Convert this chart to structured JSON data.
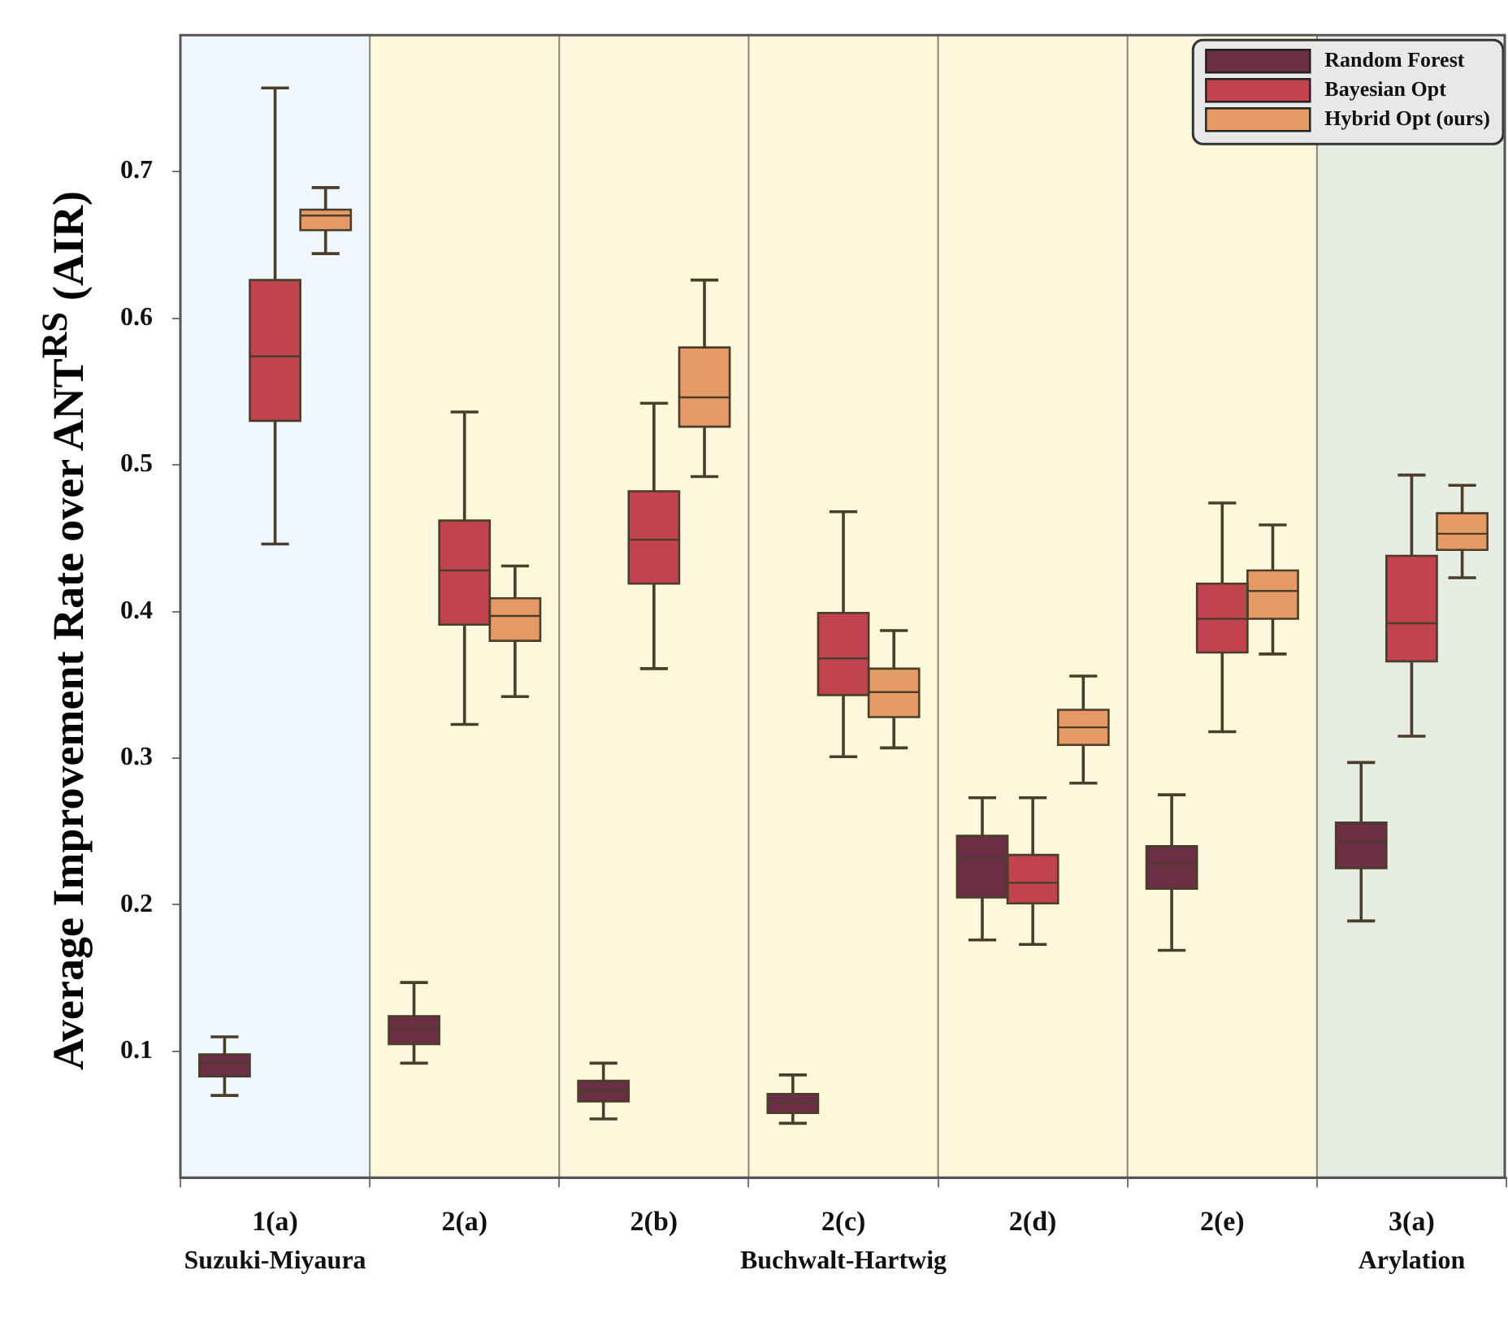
{
  "chart_data": {
    "type": "box",
    "ylabel": "Average Improvement Rate over ANT$^{RS}$ (AIR)",
    "categories": [
      "1(a)",
      "2(a)",
      "2(b)",
      "2(c)",
      "2(d)",
      "2(e)",
      "3(a)"
    ],
    "series": [
      {
        "name": "Random Forest",
        "color": "#6a2f45",
        "boxes": [
          {
            "low": 0.07,
            "q1": 0.083,
            "median": 0.092,
            "q3": 0.098,
            "high": 0.11
          },
          {
            "low": 0.092,
            "q1": 0.105,
            "median": 0.116,
            "q3": 0.124,
            "high": 0.147
          },
          {
            "low": 0.054,
            "q1": 0.066,
            "median": 0.073,
            "q3": 0.08,
            "high": 0.092
          },
          {
            "low": 0.051,
            "q1": 0.058,
            "median": 0.065,
            "q3": 0.071,
            "high": 0.084
          },
          {
            "low": 0.176,
            "q1": 0.205,
            "median": 0.232,
            "q3": 0.247,
            "high": 0.273
          },
          {
            "low": 0.169,
            "q1": 0.211,
            "median": 0.228,
            "q3": 0.24,
            "high": 0.275
          },
          {
            "low": 0.189,
            "q1": 0.225,
            "median": 0.243,
            "q3": 0.256,
            "high": 0.297
          }
        ]
      },
      {
        "name": "Bayesian Opt",
        "color": "#c0434f",
        "boxes": [
          {
            "low": 0.446,
            "q1": 0.53,
            "median": 0.574,
            "q3": 0.626,
            "high": 0.757
          },
          {
            "low": 0.323,
            "q1": 0.391,
            "median": 0.428,
            "q3": 0.462,
            "high": 0.536
          },
          {
            "low": 0.361,
            "q1": 0.419,
            "median": 0.449,
            "q3": 0.482,
            "high": 0.542
          },
          {
            "low": 0.301,
            "q1": 0.343,
            "median": 0.368,
            "q3": 0.399,
            "high": 0.468
          },
          {
            "low": 0.173,
            "q1": 0.201,
            "median": 0.215,
            "q3": 0.234,
            "high": 0.273
          },
          {
            "low": 0.318,
            "q1": 0.372,
            "median": 0.395,
            "q3": 0.419,
            "high": 0.474
          },
          {
            "low": 0.315,
            "q1": 0.366,
            "median": 0.392,
            "q3": 0.438,
            "high": 0.493
          }
        ]
      },
      {
        "name": "Hybrid Opt (ours)",
        "color": "#e59a66",
        "boxes": [
          {
            "low": 0.644,
            "q1": 0.66,
            "median": 0.67,
            "q3": 0.674,
            "high": 0.689
          },
          {
            "low": 0.342,
            "q1": 0.38,
            "median": 0.397,
            "q3": 0.409,
            "high": 0.431
          },
          {
            "low": 0.492,
            "q1": 0.526,
            "median": 0.546,
            "q3": 0.58,
            "high": 0.626
          },
          {
            "low": 0.307,
            "q1": 0.328,
            "median": 0.345,
            "q3": 0.361,
            "high": 0.387
          },
          {
            "low": 0.283,
            "q1": 0.309,
            "median": 0.321,
            "q3": 0.333,
            "high": 0.356
          },
          {
            "low": 0.371,
            "q1": 0.395,
            "median": 0.414,
            "q3": 0.428,
            "high": 0.459
          },
          {
            "low": 0.423,
            "q1": 0.442,
            "median": 0.453,
            "q3": 0.467,
            "high": 0.486
          }
        ]
      }
    ],
    "ylim": [
      0.014,
      0.793
    ],
    "yticks": [
      0.1,
      0.2,
      0.3,
      0.4,
      0.5,
      0.6,
      0.7
    ],
    "grid": "x",
    "legend": "top right",
    "bands": [
      {
        "axis": "x",
        "from": "1(a)",
        "to": "1(a)",
        "label": "Suzuki-Miyaura",
        "color": "#f0f6fe"
      },
      {
        "axis": "x",
        "from": "2(a)",
        "to": "2(e)",
        "label": "Buchwalt-Hartwig",
        "color": "#fdf8dc"
      },
      {
        "axis": "x",
        "from": "3(a)",
        "to": "3(a)",
        "label": "Arylation",
        "color": "#e6ede3"
      }
    ]
  }
}
